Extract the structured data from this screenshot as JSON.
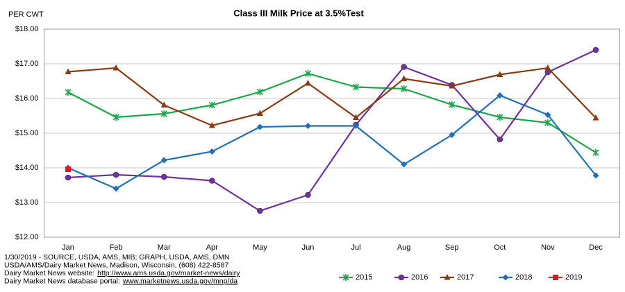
{
  "chart_data": {
    "type": "line",
    "title": "Class III Milk Price at 3.5%Test",
    "y_label": "PER CWT",
    "categories": [
      "Jan",
      "Feb",
      "Mar",
      "Apr",
      "May",
      "Jun",
      "Jul",
      "Aug",
      "Sep",
      "Oct",
      "Nov",
      "Dec"
    ],
    "ylim": [
      12,
      18
    ],
    "yticks": [
      {
        "value": 12,
        "label": "$12.00"
      },
      {
        "value": 13,
        "label": "$13.00"
      },
      {
        "value": 14,
        "label": "$14.00"
      },
      {
        "value": 15,
        "label": "$15.00"
      },
      {
        "value": 16,
        "label": "$16.00"
      },
      {
        "value": 17,
        "label": "$17.00"
      },
      {
        "value": 18,
        "label": "$18.00"
      }
    ],
    "grid": true,
    "legend": "bottom-right",
    "series": [
      {
        "name": "2015",
        "color": "#1aa64a",
        "marker": "star",
        "values": [
          16.18,
          15.46,
          15.56,
          15.81,
          16.19,
          16.72,
          16.33,
          16.28,
          15.82,
          15.46,
          15.3,
          14.44
        ]
      },
      {
        "name": "2016",
        "color": "#7030a0",
        "marker": "circle",
        "values": [
          13.72,
          13.8,
          13.74,
          13.63,
          12.76,
          13.22,
          15.24,
          16.91,
          16.39,
          14.82,
          16.76,
          17.4
        ]
      },
      {
        "name": "2017",
        "color": "#8b3a0f",
        "marker": "triangle",
        "values": [
          16.77,
          16.88,
          15.81,
          15.22,
          15.57,
          16.44,
          15.45,
          16.57,
          16.36,
          16.69,
          16.88,
          15.44
        ]
      },
      {
        "name": "2018",
        "color": "#1f6fbf",
        "marker": "diamond",
        "values": [
          14.0,
          13.4,
          14.22,
          14.47,
          15.18,
          15.21,
          15.21,
          14.1,
          14.95,
          16.09,
          15.53,
          13.78
        ]
      },
      {
        "name": "2019",
        "color": "#e8141b",
        "marker": "square",
        "values": [
          13.96,
          null,
          null,
          null,
          null,
          null,
          null,
          null,
          null,
          null,
          null,
          null
        ]
      }
    ],
    "notes": [
      {
        "text": "1/30/2019 - SOURCE, USDA, AMS, MIB; GRAPH, USDA, AMS, DMN"
      },
      {
        "text": "USDA/AMS/Dairy Market News, Madison, Wisconsin, (608) 422-8587"
      },
      {
        "text": "Dairy Market News website:",
        "link": "http://www.ams.usda.gov/market-news/dairy"
      },
      {
        "text": "Dairy Market News database portal:",
        "link": "www.marketnews.usda.gov/mnp/da"
      }
    ]
  }
}
